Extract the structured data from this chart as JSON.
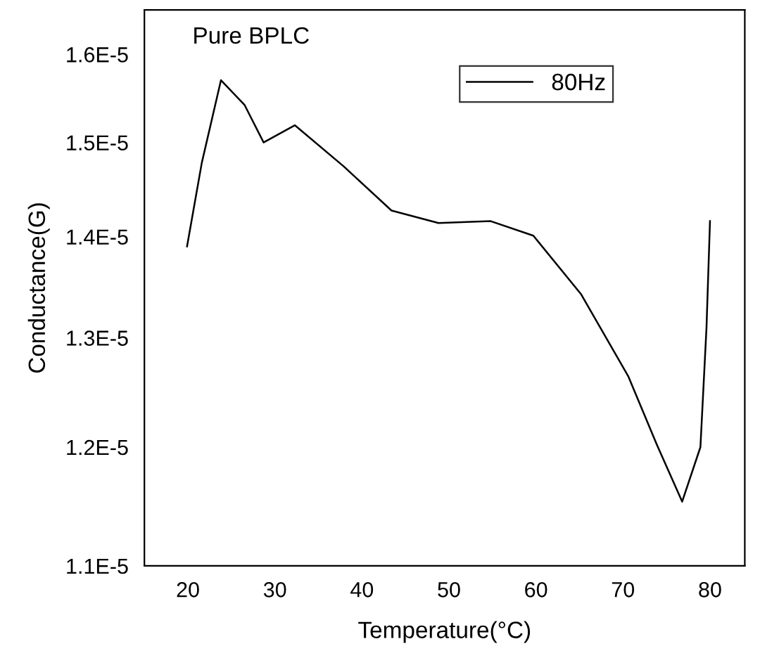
{
  "chart_data": {
    "type": "line",
    "xlabel": "Temperature(°C)",
    "ylabel": "Conductance(G)",
    "annotations": [
      "Pure BPLC"
    ],
    "x": [
      19.9,
      21.6,
      23.8,
      26.5,
      28.7,
      32.3,
      37.9,
      43.4,
      48.8,
      54.8,
      59.7,
      65.2,
      70.6,
      73.9,
      76.8,
      78.9,
      79.6,
      80.0
    ],
    "series": [
      {
        "name": "80Hz",
        "color": "#000000",
        "values": [
          1.39e-05,
          1.478e-05,
          1.57e-05,
          1.542e-05,
          1.5e-05,
          1.519e-05,
          1.474e-05,
          1.427e-05,
          1.414e-05,
          1.416e-05,
          1.401e-05,
          1.342e-05,
          1.264e-05,
          1.202e-05,
          1.153e-05,
          1.2e-05,
          1.31e-05,
          1.416e-05
        ]
      }
    ],
    "log": "y",
    "xlim": [
      15,
      84
    ],
    "ylim": [
      1.1e-05,
      1.653e-05
    ],
    "xticks": [
      20,
      30,
      40,
      50,
      60,
      70,
      80
    ],
    "yticks": [
      {
        "value": 1.1e-05,
        "label": "1.1E-5"
      },
      {
        "value": 1.2e-05,
        "label": "1.2E-5"
      },
      {
        "value": 1.3e-05,
        "label": "1.3E-5"
      },
      {
        "value": 1.4e-05,
        "label": "1.4E-5"
      },
      {
        "value": 1.5e-05,
        "label": "1.5E-5"
      },
      {
        "value": 1.6e-05,
        "label": "1.6E-5"
      }
    ],
    "legend": "top right",
    "grid": false,
    "marker": "none",
    "line_style": "solid"
  }
}
